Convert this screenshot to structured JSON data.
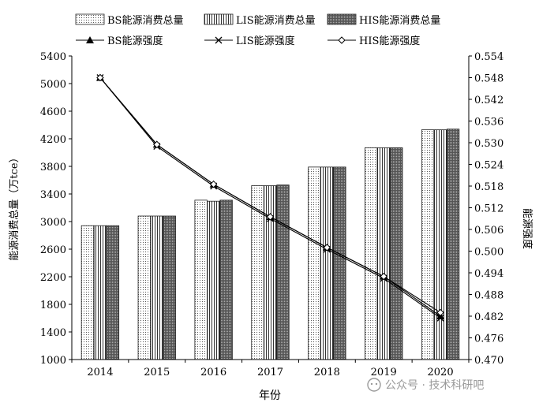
{
  "chart_data": {
    "type": "bar+line",
    "categories": [
      "2014",
      "2015",
      "2016",
      "2017",
      "2018",
      "2019",
      "2020"
    ],
    "xlabel": "年份",
    "ylabel_left": "能源消费总量（万tce）",
    "ylabel_right": "能源强度",
    "ylim_left": [
      1000,
      5400
    ],
    "yticks_left": [
      1000,
      1400,
      1800,
      2200,
      2600,
      3000,
      3400,
      3800,
      4200,
      4600,
      5000,
      5400
    ],
    "ylim_right": [
      0.47,
      0.554
    ],
    "yticks_right": [
      "0.470",
      "0.476",
      "0.482",
      "0.488",
      "0.494",
      "0.500",
      "0.506",
      "0.512",
      "0.518",
      "0.524",
      "0.530",
      "0.536",
      "0.542",
      "0.548",
      "0.554"
    ],
    "bar_series": [
      {
        "name": "BS能源消费总量",
        "pattern": "dots-light",
        "values": [
          2940,
          3080,
          3310,
          3520,
          3790,
          4070,
          4330
        ]
      },
      {
        "name": "LIS能源消费总量",
        "pattern": "vertical-hatch",
        "values": [
          2940,
          3080,
          3295,
          3520,
          3790,
          4070,
          4330
        ]
      },
      {
        "name": "HIS能源消费总量",
        "pattern": "dots-dark",
        "values": [
          2940,
          3080,
          3310,
          3530,
          3790,
          4070,
          4340
        ]
      }
    ],
    "line_series": [
      {
        "name": "BS能源强度",
        "marker": "filled-triangle",
        "values": [
          0.548,
          0.5295,
          0.5185,
          0.5095,
          0.501,
          0.493,
          0.482
        ]
      },
      {
        "name": "LIS能源强度",
        "marker": "x",
        "values": [
          0.548,
          0.529,
          0.518,
          0.509,
          0.5005,
          0.4925,
          0.4815
        ]
      },
      {
        "name": "HIS能源强度",
        "marker": "open-diamond",
        "values": [
          0.548,
          0.5295,
          0.5185,
          0.5095,
          0.501,
          0.493,
          0.483
        ]
      }
    ],
    "legend_position": "top",
    "grid": false
  },
  "watermark": "公众号 · 技术科研吧",
  "colors": {
    "axis": "#000000",
    "bar_edge": "#222222",
    "line": "#000000",
    "watermark": "#9a9a9a"
  }
}
